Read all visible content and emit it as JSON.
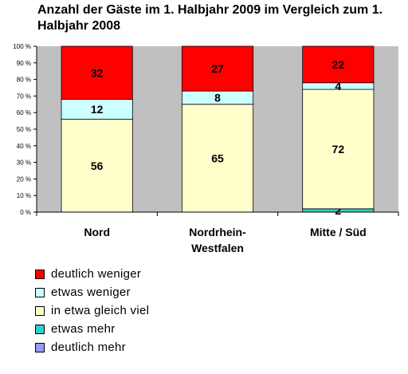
{
  "title": "Anzahl der Gäste im 1. Halbjahr 2009 im Vergleich zum 1. Halbjahr 2008",
  "chart_data": {
    "type": "bar",
    "stacked": true,
    "percent": true,
    "categories": [
      "Nord",
      "Nordrhein-Westfalen",
      "Mitte / Süd"
    ],
    "category_lines": [
      [
        "Nord"
      ],
      [
        "Nordrhein-",
        "Westfalen"
      ],
      [
        "Mitte / Süd"
      ]
    ],
    "series": [
      {
        "name": "deutlich mehr",
        "values": [
          0,
          0,
          0
        ],
        "color": "#9999ff"
      },
      {
        "name": "etwas mehr",
        "values": [
          0,
          0,
          2
        ],
        "color": "#33cccc"
      },
      {
        "name": "in etwa gleich viel",
        "values": [
          56,
          65,
          72
        ],
        "color": "#ffffcc"
      },
      {
        "name": "etwas weniger",
        "values": [
          12,
          8,
          4
        ],
        "color": "#ccffff"
      },
      {
        "name": "deutlich weniger",
        "values": [
          32,
          27,
          22
        ],
        "color": "#ff0000"
      }
    ],
    "y_ticks": [
      "0 %",
      "10 %",
      "20 %",
      "30 %",
      "40 %",
      "50 %",
      "60 %",
      "70 %",
      "80 %",
      "90 %",
      "100 %"
    ],
    "ylim": [
      0,
      100
    ],
    "plot_background": "#c0c0c0",
    "grid": false,
    "legend_position": "bottom-left"
  },
  "legend": [
    {
      "label": "deutlich weniger",
      "color": "#ff0000"
    },
    {
      "label": "etwas weniger",
      "color": "#ccffff"
    },
    {
      "label": "in etwa gleich viel",
      "color": "#ffffcc"
    },
    {
      "label": "etwas mehr",
      "color": "#33cccc"
    },
    {
      "label": "deutlich mehr",
      "color": "#9999ff"
    }
  ]
}
